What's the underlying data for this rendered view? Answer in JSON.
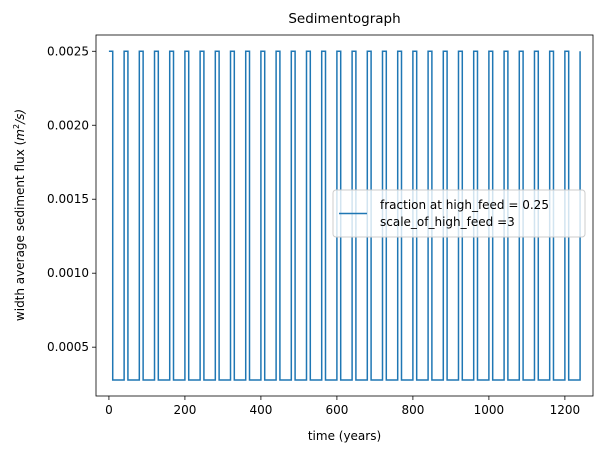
{
  "chart_data": {
    "type": "line",
    "title": "Sedimentograph",
    "xlabel": "time (years)",
    "ylabel_main": "width average sediment flux (",
    "ylabel_unit_base": "m",
    "ylabel_unit_exp": "2",
    "ylabel_unit_tail": "/s)",
    "xlim": [
      -34,
      1274
    ],
    "ylim": [
      0.00017,
      0.00261
    ],
    "xticks": [
      0,
      200,
      400,
      600,
      800,
      1000,
      1200
    ],
    "xtick_labels": [
      "0",
      "200",
      "400",
      "600",
      "800",
      "1000",
      "1200"
    ],
    "yticks": [
      0.0005,
      0.001,
      0.0015,
      0.002,
      0.0025
    ],
    "ytick_labels": [
      "0.0005",
      "0.0010",
      "0.0015",
      "0.0020",
      "0.0025"
    ],
    "grid": false,
    "legend_position": "center-right",
    "series": [
      {
        "name": "fraction at high_feed = 0.25\nscale_of_high_feed =3",
        "legend_line1": "fraction at high_feed = 0.25",
        "legend_line2": "scale_of_high_feed =3",
        "color": "#1f77b4",
        "high_value": 0.0025,
        "low_value": 0.000278,
        "period_years": 40,
        "high_duration_years": 10,
        "initial_high_end": 10,
        "end_time": 1240
      }
    ]
  }
}
